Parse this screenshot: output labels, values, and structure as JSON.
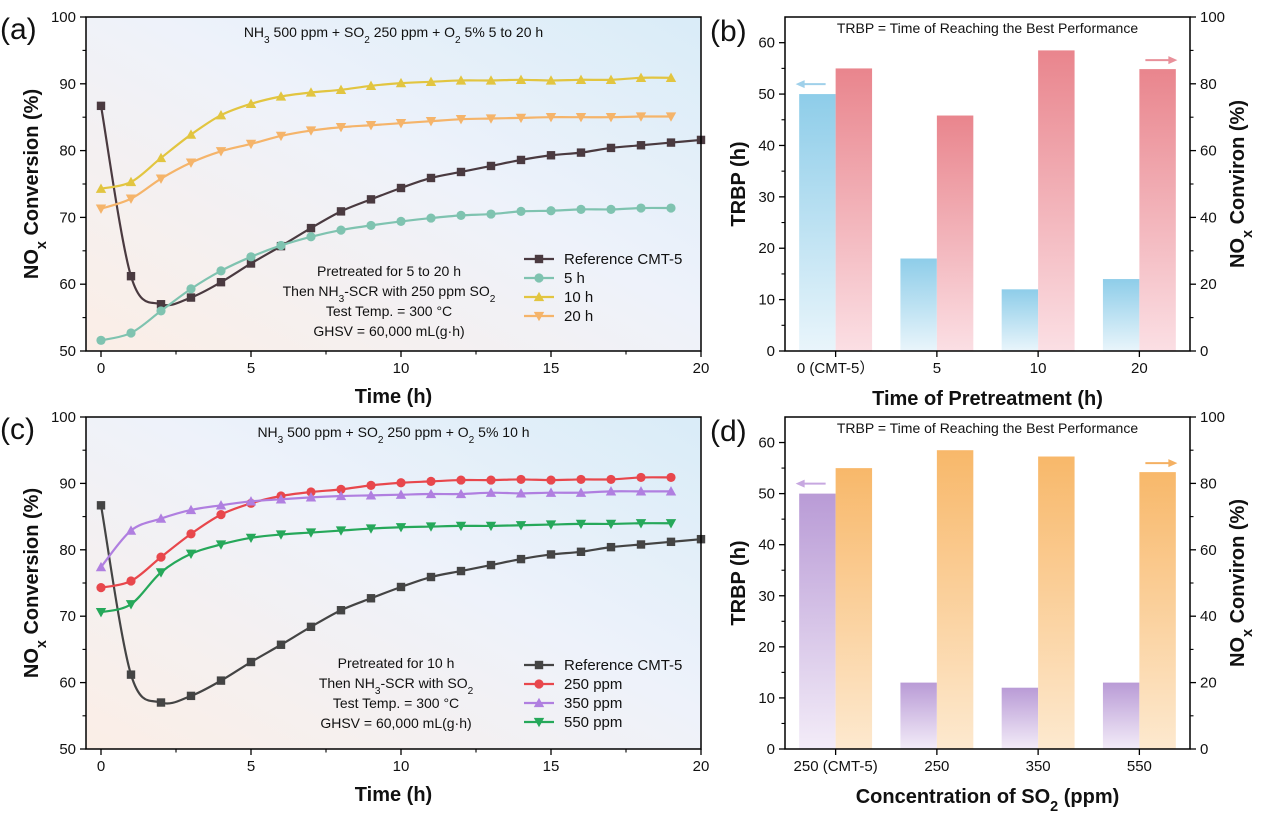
{
  "chart_data": [
    {
      "panel": "(a)",
      "type": "line",
      "title_parts": [
        [
          "NH",
          "3",
          " 500 ppm + SO",
          "2",
          " 250 ppm + O",
          "2",
          " 5%  5 to 20 h"
        ]
      ],
      "annotation_lines": [
        [
          "Pretreated for 5 to 20 h"
        ],
        [
          "Then NH",
          "3",
          "-SCR with 250 ppm SO",
          "2"
        ],
        [
          "Test Temp. = 300 °C"
        ],
        [
          "GHSV = 60,000 mL(g·h)"
        ]
      ],
      "xlabel": "Time (h)",
      "ylabel_parts": [
        "NO",
        "x",
        " Conversion (%)"
      ],
      "xlim": [
        -0.5,
        20
      ],
      "ylim": [
        50,
        100
      ],
      "xticks": [
        0,
        5,
        10,
        15,
        20
      ],
      "yticks": [
        50,
        60,
        70,
        80,
        90,
        100
      ],
      "series": [
        {
          "name": "Reference CMT-5",
          "color": "#4a3a40",
          "marker": "square",
          "x": [
            0,
            1,
            2,
            3,
            4,
            5,
            6,
            7,
            8,
            9,
            10,
            11,
            12,
            13,
            14,
            15,
            16,
            17,
            18,
            19,
            20
          ],
          "values": [
            86.7,
            61.2,
            57.0,
            58.0,
            60.3,
            63.1,
            65.7,
            68.4,
            70.9,
            72.7,
            74.4,
            75.9,
            76.8,
            77.7,
            78.6,
            79.3,
            79.7,
            80.4,
            80.8,
            81.2,
            81.6
          ]
        },
        {
          "name": "5 h",
          "color": "#7fc3b0",
          "marker": "circle",
          "x": [
            0,
            1,
            2,
            3,
            4,
            5,
            6,
            7,
            8,
            9,
            10,
            11,
            12,
            13,
            14,
            15,
            16,
            17,
            18,
            19
          ],
          "values": [
            51.6,
            52.7,
            56.0,
            59.3,
            62.0,
            64.1,
            65.8,
            67.1,
            68.1,
            68.8,
            69.4,
            69.9,
            70.3,
            70.5,
            70.9,
            71.0,
            71.2,
            71.2,
            71.4,
            71.4
          ]
        },
        {
          "name": "10 h",
          "color": "#e2c540",
          "marker": "triangle-up",
          "x": [
            0,
            1,
            2,
            3,
            4,
            5,
            6,
            7,
            8,
            9,
            10,
            11,
            12,
            13,
            14,
            15,
            16,
            17,
            18,
            19
          ],
          "values": [
            74.3,
            75.3,
            78.9,
            82.4,
            85.3,
            87.0,
            88.1,
            88.7,
            89.1,
            89.7,
            90.1,
            90.3,
            90.5,
            90.5,
            90.6,
            90.5,
            90.6,
            90.6,
            90.9,
            90.9
          ]
        },
        {
          "name": "20 h",
          "color": "#f5b46a",
          "marker": "triangle-down",
          "x": [
            0,
            1,
            2,
            3,
            4,
            5,
            6,
            7,
            8,
            9,
            10,
            11,
            12,
            13,
            14,
            15,
            16,
            17,
            18,
            19
          ],
          "values": [
            71.3,
            72.8,
            75.8,
            78.2,
            79.9,
            81.0,
            82.2,
            83.0,
            83.5,
            83.8,
            84.1,
            84.4,
            84.7,
            84.8,
            84.9,
            85.0,
            85.0,
            85.0,
            85.1,
            85.1
          ]
        }
      ]
    },
    {
      "panel": "(b)",
      "type": "bar",
      "title_parts": [
        [
          "TRBP = Time of Reaching the Best Performance"
        ]
      ],
      "categories": [
        "0 (CMT-5）",
        "5",
        "10",
        "20"
      ],
      "xlabel": "Time of Pretreatment (h)",
      "ylabel": "TRBP (h)",
      "y2label_parts": [
        "NO",
        "x",
        " Conviron (%)"
      ],
      "ylim": [
        0,
        65
      ],
      "y2lim": [
        0,
        100
      ],
      "yticks": [
        0,
        10,
        20,
        30,
        40,
        50,
        60
      ],
      "y2ticks": [
        0,
        20,
        40,
        60,
        80,
        100
      ],
      "series": [
        {
          "axis": "left",
          "values": [
            50,
            18,
            12,
            14
          ],
          "color_top": "#8ecde9",
          "color_bottom": "#e9f5fb"
        },
        {
          "axis": "right",
          "values": [
            84.6,
            70.5,
            90.0,
            84.4
          ],
          "color_top": "#e9858d",
          "color_bottom": "#fbdfe4"
        }
      ],
      "arrow_left_color": "#9fd0ea",
      "arrow_right_color": "#e8909a"
    },
    {
      "panel": "(c)",
      "type": "line",
      "title_parts": [
        [
          "NH",
          "3",
          " 500 ppm + SO",
          "2",
          " 250 ppm + O",
          "2",
          " 5%  10 h"
        ]
      ],
      "annotation_lines": [
        [
          "Pretreated for 10 h"
        ],
        [
          "Then NH",
          "3",
          "-SCR with SO",
          "2"
        ],
        [
          "Test Temp. = 300 °C"
        ],
        [
          "GHSV = 60,000 mL(g·h)"
        ]
      ],
      "xlabel": "Time (h)",
      "ylabel_parts": [
        "NO",
        "x",
        " Conversion (%)"
      ],
      "xlim": [
        -0.5,
        20
      ],
      "ylim": [
        50,
        100
      ],
      "xticks": [
        0,
        5,
        10,
        15,
        20
      ],
      "yticks": [
        50,
        60,
        70,
        80,
        90,
        100
      ],
      "series": [
        {
          "name": "Reference CMT-5",
          "color": "#444444",
          "marker": "square",
          "x": [
            0,
            1,
            2,
            3,
            4,
            5,
            6,
            7,
            8,
            9,
            10,
            11,
            12,
            13,
            14,
            15,
            16,
            17,
            18,
            19,
            20
          ],
          "values": [
            86.7,
            61.2,
            57.0,
            58.0,
            60.3,
            63.1,
            65.7,
            68.4,
            70.9,
            72.7,
            74.4,
            75.9,
            76.8,
            77.7,
            78.6,
            79.3,
            79.7,
            80.4,
            80.8,
            81.2,
            81.6
          ]
        },
        {
          "name": "250 ppm",
          "color": "#e8474c",
          "marker": "circle",
          "x": [
            0,
            1,
            2,
            3,
            4,
            5,
            6,
            7,
            8,
            9,
            10,
            11,
            12,
            13,
            14,
            15,
            16,
            17,
            18,
            19
          ],
          "values": [
            74.3,
            75.3,
            78.9,
            82.4,
            85.3,
            87.0,
            88.1,
            88.7,
            89.1,
            89.7,
            90.1,
            90.3,
            90.5,
            90.5,
            90.6,
            90.5,
            90.6,
            90.6,
            90.9,
            90.9
          ]
        },
        {
          "name": "350 ppm",
          "color": "#b07fe0",
          "marker": "triangle-up",
          "x": [
            0,
            1,
            2,
            3,
            4,
            5,
            6,
            7,
            8,
            9,
            10,
            11,
            12,
            13,
            14,
            15,
            16,
            17,
            18,
            19
          ],
          "values": [
            77.4,
            82.9,
            84.7,
            86.0,
            86.7,
            87.3,
            87.6,
            87.9,
            88.1,
            88.2,
            88.3,
            88.4,
            88.4,
            88.6,
            88.5,
            88.6,
            88.6,
            88.8,
            88.8,
            88.8
          ]
        },
        {
          "name": "550 ppm",
          "color": "#26a85a",
          "marker": "triangle-down",
          "x": [
            0,
            1,
            2,
            3,
            4,
            5,
            6,
            7,
            8,
            9,
            10,
            11,
            12,
            13,
            14,
            15,
            16,
            17,
            18,
            19
          ],
          "values": [
            70.6,
            71.8,
            76.6,
            79.4,
            80.8,
            81.8,
            82.3,
            82.6,
            82.9,
            83.2,
            83.4,
            83.5,
            83.6,
            83.6,
            83.7,
            83.8,
            83.9,
            83.9,
            84.0,
            84.0
          ]
        }
      ]
    },
    {
      "panel": "(d)",
      "type": "bar",
      "title_parts": [
        [
          "TRBP = Time of Reaching the Best Performance"
        ]
      ],
      "categories": [
        "250 (CMT-5)",
        "250",
        "350",
        "550"
      ],
      "xlabel_parts": [
        "Concentration of SO",
        "2",
        " (ppm)"
      ],
      "ylabel": "TRBP (h)",
      "y2label_parts": [
        "NO",
        "x",
        " Conviron (%)"
      ],
      "ylim": [
        0,
        65
      ],
      "y2lim": [
        0,
        100
      ],
      "yticks": [
        0,
        10,
        20,
        30,
        40,
        50,
        60
      ],
      "y2ticks": [
        0,
        20,
        40,
        60,
        80,
        100
      ],
      "series": [
        {
          "axis": "left",
          "values": [
            50,
            13,
            12,
            13
          ],
          "color_top": "#b99bd6",
          "color_bottom": "#f3ecf8"
        },
        {
          "axis": "right",
          "values": [
            84.6,
            90.0,
            88.1,
            83.4
          ],
          "color_top": "#f8b86a",
          "color_bottom": "#fde9cf"
        }
      ],
      "arrow_left_color": "#c7a8e0",
      "arrow_right_color": "#f4b062"
    }
  ]
}
